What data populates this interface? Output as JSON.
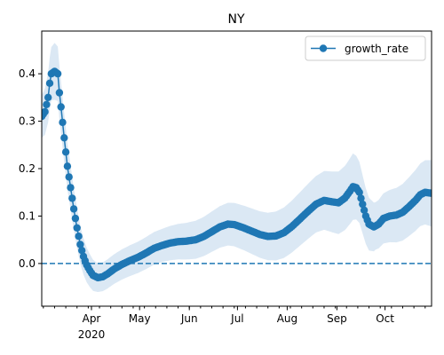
{
  "chart_data": {
    "type": "line",
    "title": "NY",
    "xlabel": "",
    "ylabel": "",
    "x_start": "2020-03-01",
    "x_end": "2020-10-30",
    "xlim": [
      "2020-03-01",
      "2020-10-30"
    ],
    "ylim": [
      -0.09,
      0.49
    ],
    "yticks": [
      0.0,
      0.1,
      0.2,
      0.3,
      0.4
    ],
    "ytick_labels": [
      "0.0",
      "0.1",
      "0.2",
      "0.3",
      "0.4"
    ],
    "xticks": [
      {
        "date": "2020-04-01",
        "label": "Apr",
        "sublabel": "2020"
      },
      {
        "date": "2020-05-01",
        "label": "May",
        "sublabel": ""
      },
      {
        "date": "2020-06-01",
        "label": "Jun",
        "sublabel": ""
      },
      {
        "date": "2020-07-01",
        "label": "Jul",
        "sublabel": ""
      },
      {
        "date": "2020-08-01",
        "label": "Aug",
        "sublabel": ""
      },
      {
        "date": "2020-09-01",
        "label": "Sep",
        "sublabel": ""
      },
      {
        "date": "2020-10-01",
        "label": "Oct",
        "sublabel": ""
      }
    ],
    "grid": false,
    "legend": {
      "position": "top-right",
      "entries": [
        "growth_rate"
      ]
    },
    "reference_line": {
      "y": 0.0,
      "style": "dashed"
    },
    "colors": {
      "line": "#1f77b4",
      "band": "#dbe8f4"
    },
    "series": [
      {
        "name": "growth_rate",
        "points": [
          [
            "2020-03-01",
            0.31
          ],
          [
            "2020-03-03",
            0.32
          ],
          [
            "2020-03-05",
            0.35
          ],
          [
            "2020-03-06",
            0.38
          ],
          [
            "2020-03-07",
            0.4
          ],
          [
            "2020-03-09",
            0.405
          ],
          [
            "2020-03-11",
            0.4
          ],
          [
            "2020-03-12",
            0.36
          ],
          [
            "2020-03-13",
            0.33
          ],
          [
            "2020-03-15",
            0.265
          ],
          [
            "2020-03-16",
            0.235
          ],
          [
            "2020-03-17",
            0.205
          ],
          [
            "2020-03-19",
            0.16
          ],
          [
            "2020-03-21",
            0.115
          ],
          [
            "2020-03-23",
            0.075
          ],
          [
            "2020-03-25",
            0.04
          ],
          [
            "2020-03-27",
            0.015
          ],
          [
            "2020-03-29",
            -0.003
          ],
          [
            "2020-03-31",
            -0.015
          ],
          [
            "2020-04-02",
            -0.025
          ],
          [
            "2020-04-05",
            -0.03
          ],
          [
            "2020-04-08",
            -0.028
          ],
          [
            "2020-04-11",
            -0.022
          ],
          [
            "2020-04-15",
            -0.012
          ],
          [
            "2020-04-20",
            -0.002
          ],
          [
            "2020-04-25",
            0.006
          ],
          [
            "2020-04-30",
            0.013
          ],
          [
            "2020-05-05",
            0.022
          ],
          [
            "2020-05-10",
            0.032
          ],
          [
            "2020-05-15",
            0.038
          ],
          [
            "2020-05-20",
            0.043
          ],
          [
            "2020-05-25",
            0.046
          ],
          [
            "2020-05-30",
            0.047
          ],
          [
            "2020-06-05",
            0.05
          ],
          [
            "2020-06-10",
            0.057
          ],
          [
            "2020-06-15",
            0.067
          ],
          [
            "2020-06-20",
            0.077
          ],
          [
            "2020-06-25",
            0.083
          ],
          [
            "2020-06-29",
            0.082
          ],
          [
            "2020-07-05",
            0.075
          ],
          [
            "2020-07-10",
            0.068
          ],
          [
            "2020-07-15",
            0.061
          ],
          [
            "2020-07-20",
            0.057
          ],
          [
            "2020-07-25",
            0.058
          ],
          [
            "2020-07-30",
            0.065
          ],
          [
            "2020-08-04",
            0.078
          ],
          [
            "2020-08-09",
            0.094
          ],
          [
            "2020-08-14",
            0.11
          ],
          [
            "2020-08-19",
            0.125
          ],
          [
            "2020-08-24",
            0.133
          ],
          [
            "2020-08-29",
            0.13
          ],
          [
            "2020-09-02",
            0.128
          ],
          [
            "2020-09-06",
            0.138
          ],
          [
            "2020-09-09",
            0.152
          ],
          [
            "2020-09-11",
            0.162
          ],
          [
            "2020-09-13",
            0.16
          ],
          [
            "2020-09-15",
            0.15
          ],
          [
            "2020-09-17",
            0.125
          ],
          [
            "2020-09-19",
            0.1
          ],
          [
            "2020-09-21",
            0.083
          ],
          [
            "2020-09-24",
            0.077
          ],
          [
            "2020-09-27",
            0.083
          ],
          [
            "2020-09-30",
            0.095
          ],
          [
            "2020-10-04",
            0.1
          ],
          [
            "2020-10-08",
            0.102
          ],
          [
            "2020-10-12",
            0.108
          ],
          [
            "2020-10-16",
            0.12
          ],
          [
            "2020-10-20",
            0.133
          ],
          [
            "2020-10-23",
            0.145
          ],
          [
            "2020-10-26",
            0.15
          ],
          [
            "2020-10-30",
            0.148
          ]
        ],
        "band_halfwidth": [
          [
            "2020-03-01",
            0.045
          ],
          [
            "2020-03-09",
            0.06
          ],
          [
            "2020-03-20",
            0.045
          ],
          [
            "2020-04-05",
            0.03
          ],
          [
            "2020-05-15",
            0.035
          ],
          [
            "2020-06-25",
            0.045
          ],
          [
            "2020-07-20",
            0.05
          ],
          [
            "2020-08-20",
            0.06
          ],
          [
            "2020-09-11",
            0.07
          ],
          [
            "2020-09-25",
            0.05
          ],
          [
            "2020-10-30",
            0.07
          ]
        ]
      }
    ]
  }
}
